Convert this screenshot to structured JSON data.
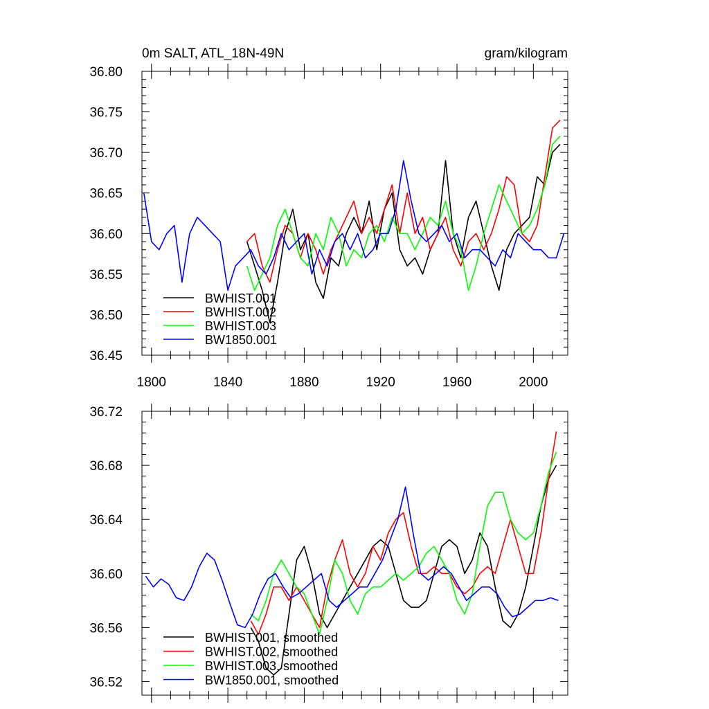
{
  "chart_data": [
    {
      "type": "line",
      "title": "0m SALT, ATL_18N-49N",
      "units": "gram/kilogram",
      "xlim": [
        1795,
        2018
      ],
      "ylim": [
        36.45,
        36.8
      ],
      "xticks": [
        1800,
        1840,
        1880,
        1920,
        1960,
        2000
      ],
      "xtick_labels": [
        "1800",
        "1840",
        "1880",
        "1920",
        "1960",
        "2000"
      ],
      "yticks": [
        36.45,
        36.5,
        36.55,
        36.6,
        36.65,
        36.7,
        36.75,
        36.8
      ],
      "ytick_labels": [
        "36.45",
        "36.50",
        "36.55",
        "36.60",
        "36.65",
        "36.70",
        "36.75",
        "36.80"
      ],
      "legend_position": "bottom-left",
      "series": [
        {
          "name": "BWHIST.001",
          "color": "#000000",
          "x": [
            1850,
            1854,
            1858,
            1862,
            1866,
            1870,
            1874,
            1878,
            1882,
            1886,
            1890,
            1894,
            1898,
            1902,
            1906,
            1910,
            1914,
            1918,
            1922,
            1926,
            1930,
            1934,
            1938,
            1942,
            1946,
            1950,
            1954,
            1958,
            1962,
            1966,
            1970,
            1974,
            1978,
            1982,
            1986,
            1990,
            1994,
            1998,
            2002,
            2006,
            2010,
            2014
          ],
          "y": [
            36.59,
            36.56,
            36.53,
            36.49,
            36.54,
            36.6,
            36.63,
            36.58,
            36.6,
            36.54,
            36.52,
            36.57,
            36.56,
            36.6,
            36.62,
            36.6,
            36.64,
            36.58,
            36.63,
            36.65,
            36.58,
            36.56,
            36.57,
            36.55,
            36.58,
            36.6,
            36.69,
            36.6,
            36.57,
            36.62,
            36.64,
            36.6,
            36.56,
            36.53,
            36.58,
            36.6,
            36.61,
            36.62,
            36.67,
            36.66,
            36.7,
            36.71
          ]
        },
        {
          "name": "BWHIST.002",
          "color": "#ff0000",
          "x": [
            1850,
            1854,
            1858,
            1862,
            1866,
            1870,
            1874,
            1878,
            1882,
            1886,
            1890,
            1894,
            1898,
            1902,
            1906,
            1910,
            1914,
            1918,
            1922,
            1926,
            1930,
            1934,
            1938,
            1942,
            1946,
            1950,
            1954,
            1958,
            1962,
            1966,
            1970,
            1974,
            1978,
            1982,
            1986,
            1990,
            1994,
            1998,
            2002,
            2006,
            2010,
            2014
          ],
          "y": [
            36.59,
            36.6,
            36.56,
            36.54,
            36.58,
            36.61,
            36.6,
            36.57,
            36.6,
            36.58,
            36.55,
            36.58,
            36.6,
            36.62,
            36.64,
            36.6,
            36.62,
            36.6,
            36.63,
            36.66,
            36.6,
            36.65,
            36.6,
            36.62,
            36.58,
            36.6,
            36.62,
            36.58,
            36.56,
            36.59,
            36.6,
            36.58,
            36.6,
            36.63,
            36.67,
            36.66,
            36.6,
            36.59,
            36.61,
            36.67,
            36.73,
            36.74
          ]
        },
        {
          "name": "BWHIST.003",
          "color": "#00ff00",
          "x": [
            1850,
            1854,
            1858,
            1862,
            1866,
            1870,
            1874,
            1878,
            1882,
            1886,
            1890,
            1894,
            1898,
            1902,
            1906,
            1910,
            1914,
            1918,
            1922,
            1926,
            1930,
            1934,
            1938,
            1942,
            1946,
            1950,
            1954,
            1958,
            1962,
            1966,
            1970,
            1974,
            1978,
            1982,
            1986,
            1990,
            1994,
            1998,
            2002,
            2006,
            2010,
            2014
          ],
          "y": [
            36.56,
            36.53,
            36.55,
            36.57,
            36.61,
            36.63,
            36.6,
            36.57,
            36.56,
            36.6,
            36.58,
            36.62,
            36.6,
            36.56,
            36.58,
            36.57,
            36.6,
            36.61,
            36.59,
            36.62,
            36.6,
            36.6,
            36.58,
            36.6,
            36.62,
            36.61,
            36.64,
            36.6,
            36.58,
            36.53,
            36.56,
            36.6,
            36.63,
            36.66,
            36.64,
            36.62,
            36.6,
            36.61,
            36.63,
            36.66,
            36.71,
            36.72
          ]
        },
        {
          "name": "BW1850.001",
          "color": "#0000ff",
          "x": [
            1796,
            1800,
            1804,
            1808,
            1812,
            1816,
            1820,
            1824,
            1828,
            1832,
            1836,
            1840,
            1844,
            1848,
            1852,
            1856,
            1860,
            1864,
            1868,
            1872,
            1876,
            1880,
            1884,
            1888,
            1892,
            1896,
            1900,
            1904,
            1908,
            1912,
            1916,
            1920,
            1924,
            1928,
            1932,
            1936,
            1940,
            1944,
            1948,
            1952,
            1956,
            1960,
            1964,
            1968,
            1972,
            1976,
            1980,
            1984,
            1988,
            1992,
            1996,
            2000,
            2004,
            2008,
            2012,
            2016
          ],
          "y": [
            36.65,
            36.59,
            36.58,
            36.6,
            36.61,
            36.54,
            36.6,
            36.62,
            36.61,
            36.6,
            36.59,
            36.53,
            36.56,
            36.57,
            36.58,
            36.56,
            36.55,
            36.57,
            36.6,
            36.58,
            36.59,
            36.6,
            36.55,
            36.58,
            36.56,
            36.59,
            36.6,
            36.58,
            36.6,
            36.57,
            36.58,
            36.6,
            36.6,
            36.63,
            36.69,
            36.64,
            36.6,
            36.59,
            36.6,
            36.61,
            36.59,
            36.6,
            36.57,
            36.58,
            36.58,
            36.57,
            36.56,
            36.58,
            36.57,
            36.6,
            36.59,
            36.58,
            36.58,
            36.57,
            36.57,
            36.6
          ]
        }
      ]
    },
    {
      "type": "line",
      "title": "",
      "xlim": [
        1795,
        2018
      ],
      "ylim": [
        36.51,
        36.72
      ],
      "xticks": [
        1800,
        1840,
        1880,
        1920,
        1960,
        2000
      ],
      "yticks": [
        36.52,
        36.56,
        36.6,
        36.64,
        36.68,
        36.72
      ],
      "ytick_labels": [
        "36.52",
        "36.56",
        "36.60",
        "36.64",
        "36.68",
        "36.72"
      ],
      "legend_position": "bottom-left",
      "series": [
        {
          "name": "BWHIST.001, smoothed",
          "color": "#000000",
          "x": [
            1852,
            1856,
            1860,
            1864,
            1868,
            1872,
            1876,
            1880,
            1884,
            1888,
            1892,
            1896,
            1900,
            1904,
            1908,
            1912,
            1916,
            1920,
            1924,
            1928,
            1932,
            1936,
            1940,
            1944,
            1948,
            1952,
            1956,
            1960,
            1964,
            1968,
            1972,
            1976,
            1980,
            1984,
            1988,
            1992,
            1996,
            2000,
            2004,
            2008,
            2012
          ],
          "y": [
            36.56,
            36.55,
            36.53,
            36.525,
            36.53,
            36.57,
            36.61,
            36.62,
            36.6,
            36.57,
            36.56,
            36.57,
            36.58,
            36.59,
            36.6,
            36.61,
            36.62,
            36.625,
            36.62,
            36.6,
            36.58,
            36.575,
            36.575,
            36.58,
            36.6,
            36.62,
            36.625,
            36.62,
            36.6,
            36.61,
            36.63,
            36.62,
            36.59,
            36.565,
            36.56,
            36.57,
            36.59,
            36.62,
            36.65,
            36.67,
            36.68
          ]
        },
        {
          "name": "BWHIST.002, smoothed",
          "color": "#ff0000",
          "x": [
            1852,
            1856,
            1860,
            1864,
            1868,
            1872,
            1876,
            1880,
            1884,
            1888,
            1892,
            1896,
            1900,
            1904,
            1908,
            1912,
            1916,
            1920,
            1924,
            1928,
            1932,
            1936,
            1940,
            1944,
            1948,
            1952,
            1956,
            1960,
            1964,
            1968,
            1972,
            1976,
            1980,
            1984,
            1988,
            1992,
            1996,
            2000,
            2004,
            2008,
            2012
          ],
          "y": [
            36.565,
            36.555,
            36.57,
            36.59,
            36.59,
            36.58,
            36.59,
            36.58,
            36.57,
            36.56,
            36.59,
            36.61,
            36.625,
            36.6,
            36.59,
            36.6,
            36.62,
            36.61,
            36.63,
            36.64,
            36.645,
            36.62,
            36.6,
            36.6,
            36.605,
            36.6,
            36.6,
            36.59,
            36.585,
            36.59,
            36.6,
            36.605,
            36.6,
            36.62,
            36.64,
            36.62,
            36.6,
            36.6,
            36.63,
            36.67,
            36.705
          ]
        },
        {
          "name": "BWHIST.003, smoothed",
          "color": "#00ff00",
          "x": [
            1852,
            1856,
            1860,
            1864,
            1868,
            1872,
            1876,
            1880,
            1884,
            1888,
            1892,
            1896,
            1900,
            1904,
            1908,
            1912,
            1916,
            1920,
            1924,
            1928,
            1932,
            1936,
            1940,
            1944,
            1948,
            1952,
            1956,
            1960,
            1964,
            1968,
            1972,
            1976,
            1980,
            1984,
            1988,
            1992,
            1996,
            2000,
            2004,
            2008,
            2012
          ],
          "y": [
            36.57,
            36.565,
            36.58,
            36.6,
            36.61,
            36.6,
            36.59,
            36.585,
            36.57,
            36.555,
            36.58,
            36.61,
            36.6,
            36.58,
            36.57,
            36.585,
            36.59,
            36.59,
            36.595,
            36.6,
            36.595,
            36.6,
            36.605,
            36.615,
            36.62,
            36.61,
            36.6,
            36.58,
            36.57,
            36.585,
            36.62,
            36.65,
            36.66,
            36.66,
            36.64,
            36.63,
            36.625,
            36.63,
            36.65,
            36.675,
            36.69
          ]
        },
        {
          "name": "BW1850.001, smoothed",
          "color": "#0000ff",
          "x": [
            1797,
            1801,
            1805,
            1809,
            1813,
            1817,
            1821,
            1825,
            1829,
            1833,
            1837,
            1841,
            1845,
            1849,
            1853,
            1857,
            1861,
            1865,
            1869,
            1873,
            1877,
            1881,
            1885,
            1889,
            1893,
            1897,
            1901,
            1905,
            1909,
            1913,
            1917,
            1921,
            1925,
            1929,
            1933,
            1937,
            1941,
            1945,
            1949,
            1953,
            1957,
            1961,
            1965,
            1969,
            1973,
            1977,
            1981,
            1985,
            1989,
            1993,
            1997,
            2001,
            2005,
            2009,
            2013
          ],
          "y": [
            36.598,
            36.59,
            36.596,
            36.592,
            36.582,
            36.58,
            36.59,
            36.605,
            36.615,
            36.61,
            36.595,
            36.578,
            36.562,
            36.56,
            36.57,
            36.585,
            36.596,
            36.6,
            36.59,
            36.582,
            36.585,
            36.59,
            36.595,
            36.6,
            36.58,
            36.575,
            36.58,
            36.585,
            36.59,
            36.59,
            36.6,
            36.61,
            36.625,
            36.64,
            36.664,
            36.63,
            36.6,
            36.595,
            36.6,
            36.605,
            36.6,
            36.59,
            36.58,
            36.585,
            36.59,
            36.59,
            36.585,
            36.575,
            36.568,
            36.57,
            36.575,
            36.58,
            36.58,
            36.582,
            36.58
          ]
        }
      ]
    }
  ]
}
